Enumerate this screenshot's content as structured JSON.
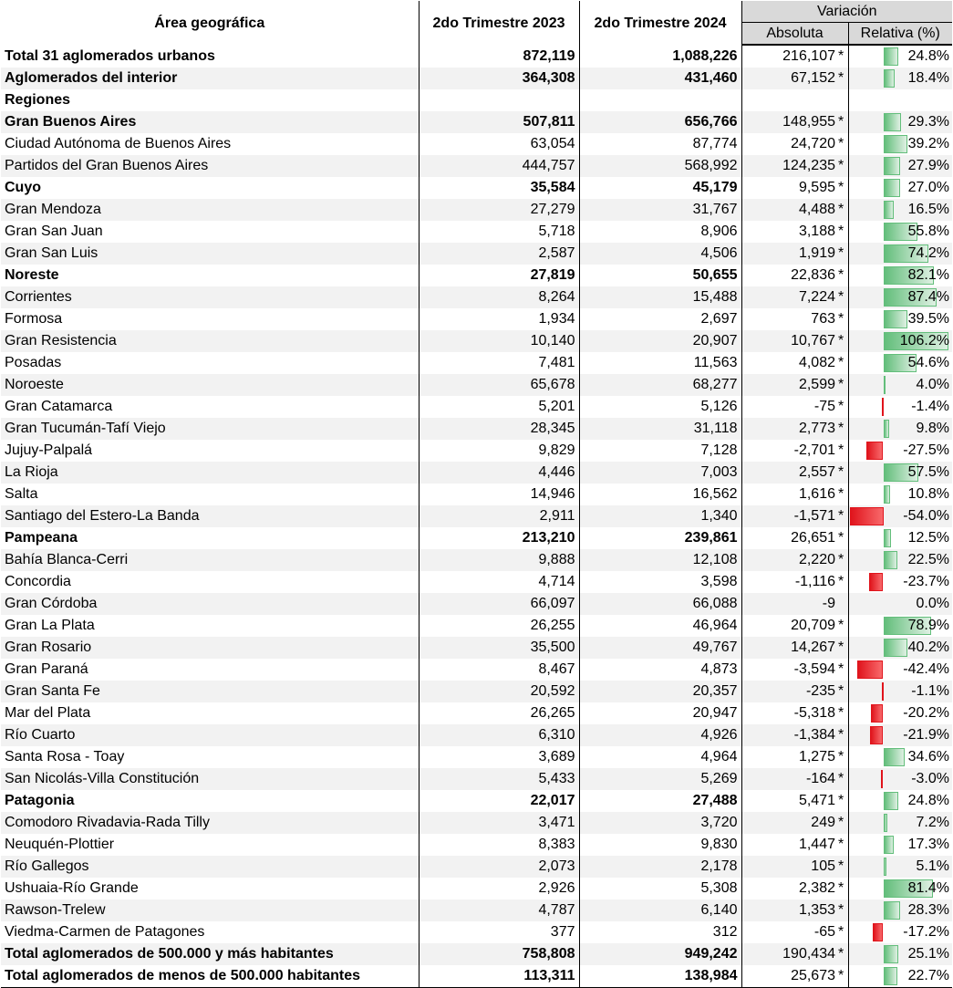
{
  "header": {
    "area": "Área geográfica",
    "col2023": "2do Trimestre 2023",
    "col2024": "2do Trimestre 2024",
    "variacion": "Variación",
    "absoluta": "Absoluta",
    "relativa": "Relativa (%)"
  },
  "rows": [
    {
      "name": "Total 31 aglomerados urbanos",
      "bold": true,
      "v2023": "872,119",
      "v2024": "1,088,226",
      "abs": "216,107",
      "star": "*",
      "rel": "24.8%",
      "rel_value": 24.8
    },
    {
      "name": "Aglomerados del interior",
      "bold": true,
      "v2023": "364,308",
      "v2024": "431,460",
      "abs": "67,152",
      "star": "*",
      "rel": "18.4%",
      "rel_value": 18.4
    },
    {
      "name": "Regiones",
      "bold": true,
      "v2023": "",
      "v2024": "",
      "abs": "",
      "star": "",
      "rel": "",
      "rel_value": null
    },
    {
      "name": "Gran Buenos Aires",
      "bold": true,
      "v2023": "507,811",
      "v2024": "656,766",
      "abs": "148,955",
      "star": "*",
      "rel": "29.3%",
      "rel_value": 29.3
    },
    {
      "name": "Ciudad Autónoma de Buenos Aires",
      "bold": false,
      "v2023": "63,054",
      "v2024": "87,774",
      "abs": "24,720",
      "star": "*",
      "rel": "39.2%",
      "rel_value": 39.2
    },
    {
      "name": "Partidos del Gran Buenos Aires",
      "bold": false,
      "v2023": "444,757",
      "v2024": "568,992",
      "abs": "124,235",
      "star": "*",
      "rel": "27.9%",
      "rel_value": 27.9
    },
    {
      "name": "Cuyo",
      "bold": true,
      "v2023": "35,584",
      "v2024": "45,179",
      "abs": "9,595",
      "star": "*",
      "rel": "27.0%",
      "rel_value": 27.0
    },
    {
      "name": "Gran Mendoza",
      "bold": false,
      "v2023": "27,279",
      "v2024": "31,767",
      "abs": "4,488",
      "star": "*",
      "rel": "16.5%",
      "rel_value": 16.5
    },
    {
      "name": "Gran San Juan",
      "bold": false,
      "v2023": "5,718",
      "v2024": "8,906",
      "abs": "3,188",
      "star": "*",
      "rel": "55.8%",
      "rel_value": 55.8
    },
    {
      "name": "Gran San Luis",
      "bold": false,
      "v2023": "2,587",
      "v2024": "4,506",
      "abs": "1,919",
      "star": "*",
      "rel": "74.2%",
      "rel_value": 74.2
    },
    {
      "name": "Noreste",
      "bold": true,
      "v2023": "27,819",
      "v2024": "50,655",
      "abs": "22,836",
      "star": "*",
      "rel": "82.1%",
      "rel_value": 82.1
    },
    {
      "name": "Corrientes",
      "bold": false,
      "v2023": "8,264",
      "v2024": "15,488",
      "abs": "7,224",
      "star": "*",
      "rel": "87.4%",
      "rel_value": 87.4
    },
    {
      "name": "Formosa",
      "bold": false,
      "v2023": "1,934",
      "v2024": "2,697",
      "abs": "763",
      "star": "*",
      "rel": "39.5%",
      "rel_value": 39.5
    },
    {
      "name": "Gran Resistencia",
      "bold": false,
      "v2023": "10,140",
      "v2024": "20,907",
      "abs": "10,767",
      "star": "*",
      "rel": "106.2%",
      "rel_value": 106.2
    },
    {
      "name": "Posadas",
      "bold": false,
      "v2023": "7,481",
      "v2024": "11,563",
      "abs": "4,082",
      "star": "*",
      "rel": "54.6%",
      "rel_value": 54.6
    },
    {
      "name": "Noroeste",
      "bold": false,
      "v2023": "65,678",
      "v2024": "68,277",
      "abs": "2,599",
      "star": "*",
      "rel": "4.0%",
      "rel_value": 4.0
    },
    {
      "name": "Gran Catamarca",
      "bold": false,
      "v2023": "5,201",
      "v2024": "5,126",
      "abs": "-75",
      "star": "*",
      "rel": "-1.4%",
      "rel_value": -1.4
    },
    {
      "name": "Gran Tucumán-Tafí Viejo",
      "bold": false,
      "v2023": "28,345",
      "v2024": "31,118",
      "abs": "2,773",
      "star": "*",
      "rel": "9.8%",
      "rel_value": 9.8
    },
    {
      "name": "Jujuy-Palpalá",
      "bold": false,
      "v2023": "9,829",
      "v2024": "7,128",
      "abs": "-2,701",
      "star": "*",
      "rel": "-27.5%",
      "rel_value": -27.5
    },
    {
      "name": "La Rioja",
      "bold": false,
      "v2023": "4,446",
      "v2024": "7,003",
      "abs": "2,557",
      "star": "*",
      "rel": "57.5%",
      "rel_value": 57.5
    },
    {
      "name": "Salta",
      "bold": false,
      "v2023": "14,946",
      "v2024": "16,562",
      "abs": "1,616",
      "star": "*",
      "rel": "10.8%",
      "rel_value": 10.8
    },
    {
      "name": "Santiago del Estero-La Banda",
      "bold": false,
      "v2023": "2,911",
      "v2024": "1,340",
      "abs": "-1,571",
      "star": "*",
      "rel": "-54.0%",
      "rel_value": -54.0
    },
    {
      "name": "Pampeana",
      "bold": true,
      "v2023": "213,210",
      "v2024": "239,861",
      "abs": "26,651",
      "star": "*",
      "rel": "12.5%",
      "rel_value": 12.5
    },
    {
      "name": "Bahía Blanca-Cerri",
      "bold": false,
      "v2023": "9,888",
      "v2024": "12,108",
      "abs": "2,220",
      "star": "*",
      "rel": "22.5%",
      "rel_value": 22.5
    },
    {
      "name": "Concordia",
      "bold": false,
      "v2023": "4,714",
      "v2024": "3,598",
      "abs": "-1,116",
      "star": "*",
      "rel": "-23.7%",
      "rel_value": -23.7
    },
    {
      "name": "Gran Córdoba",
      "bold": false,
      "v2023": "66,097",
      "v2024": "66,088",
      "abs": "-9",
      "star": "",
      "rel": "0.0%",
      "rel_value": 0.0
    },
    {
      "name": "Gran La Plata",
      "bold": false,
      "v2023": "26,255",
      "v2024": "46,964",
      "abs": "20,709",
      "star": "*",
      "rel": "78.9%",
      "rel_value": 78.9
    },
    {
      "name": "Gran Rosario",
      "bold": false,
      "v2023": "35,500",
      "v2024": "49,767",
      "abs": "14,267",
      "star": "*",
      "rel": "40.2%",
      "rel_value": 40.2
    },
    {
      "name": "Gran Paraná",
      "bold": false,
      "v2023": "8,467",
      "v2024": "4,873",
      "abs": "-3,594",
      "star": "*",
      "rel": "-42.4%",
      "rel_value": -42.4
    },
    {
      "name": "Gran Santa Fe",
      "bold": false,
      "v2023": "20,592",
      "v2024": "20,357",
      "abs": "-235",
      "star": "*",
      "rel": "-1.1%",
      "rel_value": -1.1
    },
    {
      "name": "Mar del Plata",
      "bold": false,
      "v2023": "26,265",
      "v2024": "20,947",
      "abs": "-5,318",
      "star": "*",
      "rel": "-20.2%",
      "rel_value": -20.2
    },
    {
      "name": "Río Cuarto",
      "bold": false,
      "v2023": "6,310",
      "v2024": "4,926",
      "abs": "-1,384",
      "star": "*",
      "rel": "-21.9%",
      "rel_value": -21.9
    },
    {
      "name": "Santa Rosa - Toay",
      "bold": false,
      "v2023": "3,689",
      "v2024": "4,964",
      "abs": "1,275",
      "star": "*",
      "rel": "34.6%",
      "rel_value": 34.6
    },
    {
      "name": "San Nicolás-Villa Constitución",
      "bold": false,
      "v2023": "5,433",
      "v2024": "5,269",
      "abs": "-164",
      "star": "*",
      "rel": "-3.0%",
      "rel_value": -3.0
    },
    {
      "name": "Patagonia",
      "bold": true,
      "v2023": "22,017",
      "v2024": "27,488",
      "abs": "5,471",
      "star": "*",
      "rel": "24.8%",
      "rel_value": 24.8
    },
    {
      "name": "Comodoro Rivadavia-Rada Tilly",
      "bold": false,
      "v2023": "3,471",
      "v2024": "3,720",
      "abs": "249",
      "star": "*",
      "rel": "7.2%",
      "rel_value": 7.2
    },
    {
      "name": "Neuquén-Plottier",
      "bold": false,
      "v2023": "8,383",
      "v2024": "9,830",
      "abs": "1,447",
      "star": "*",
      "rel": "17.3%",
      "rel_value": 17.3
    },
    {
      "name": "Río Gallegos",
      "bold": false,
      "v2023": "2,073",
      "v2024": "2,178",
      "abs": "105",
      "star": "*",
      "rel": "5.1%",
      "rel_value": 5.1
    },
    {
      "name": "Ushuaia-Río Grande",
      "bold": false,
      "v2023": "2,926",
      "v2024": "5,308",
      "abs": "2,382",
      "star": "*",
      "rel": "81.4%",
      "rel_value": 81.4
    },
    {
      "name": "Rawson-Trelew",
      "bold": false,
      "v2023": "4,787",
      "v2024": "6,140",
      "abs": "1,353",
      "star": "*",
      "rel": "28.3%",
      "rel_value": 28.3
    },
    {
      "name": "Viedma-Carmen de Patagones",
      "bold": false,
      "v2023": "377",
      "v2024": "312",
      "abs": "-65",
      "star": "*",
      "rel": "-17.2%",
      "rel_value": -17.2
    },
    {
      "name": "Total aglomerados de 500.000 y más habitantes",
      "bold": true,
      "v2023": "758,808",
      "v2024": "949,242",
      "abs": "190,434",
      "star": "*",
      "rel": "25.1%",
      "rel_value": 25.1
    },
    {
      "name": "Total aglomerados de menos de 500.000 habitantes",
      "bold": true,
      "v2023": "113,311",
      "v2024": "138,984",
      "abs": "25,673",
      "star": "*",
      "rel": "22.7%",
      "rel_value": 22.7
    }
  ],
  "colors": {
    "positive_bar": "#63be7b",
    "negative_bar": "#e0141c",
    "header_gray": "#d9d9d9",
    "stripe": "#f2f2f2"
  }
}
